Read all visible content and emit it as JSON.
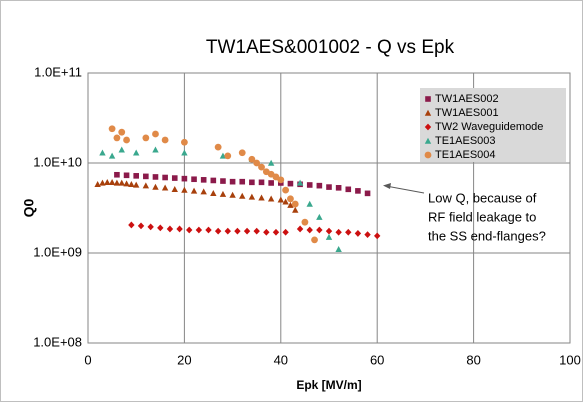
{
  "chart_data": {
    "type": "scatter",
    "title": "TW1AES&001002 - Q vs Epk",
    "x_label": "Epk [MV/m]",
    "y_label": "Q0",
    "xlim": [
      0,
      100
    ],
    "xticks": [
      0,
      20,
      40,
      60,
      80,
      100
    ],
    "ylim": [
      100000000,
      100000000000
    ],
    "yscale": "log",
    "yticks": [
      {
        "value": 100000000,
        "label": "1.0E+08"
      },
      {
        "value": 1000000000,
        "label": "1.0E+09"
      },
      {
        "value": 10000000000,
        "label": "1.0E+10"
      },
      {
        "value": 100000000000,
        "label": "1.0E+11"
      }
    ],
    "grid": true,
    "legend": "upper right",
    "annotation": [
      "Low Q, because of",
      "RF field leakage to",
      "the SS end-flanges?"
    ],
    "series": [
      {
        "name": "TW1AES002",
        "color": "#8b1a4a",
        "marker": "square",
        "x": [
          6,
          8,
          10,
          12,
          14,
          16,
          18,
          20,
          22,
          24,
          26,
          28,
          30,
          32,
          34,
          36,
          38,
          40,
          42,
          44,
          46,
          48,
          50,
          52,
          54,
          56,
          58
        ],
        "values": [
          7400000000,
          7300000000,
          7200000000,
          7100000000,
          7000000000,
          6900000000,
          6800000000,
          6700000000,
          6600000000,
          6500000000,
          6400000000,
          6300000000,
          6200000000,
          6200000000,
          6100000000,
          6100000000,
          6000000000,
          6000000000,
          5900000000,
          5800000000,
          5700000000,
          5600000000,
          5400000000,
          5300000000,
          5100000000,
          4900000000,
          4600000000
        ]
      },
      {
        "name": "TW1AES001",
        "color": "#a8400c",
        "marker": "triangle",
        "x": [
          2,
          3,
          4,
          5,
          6,
          7,
          8,
          9,
          10,
          12,
          14,
          16,
          18,
          20,
          22,
          24,
          26,
          28,
          30,
          32,
          34,
          36,
          38,
          40,
          41,
          42,
          43
        ],
        "values": [
          5800000000,
          6000000000,
          6100000000,
          6100000000,
          6000000000,
          6000000000,
          5900000000,
          5800000000,
          5700000000,
          5600000000,
          5400000000,
          5300000000,
          5100000000,
          5000000000,
          4900000000,
          4800000000,
          4600000000,
          4500000000,
          4400000000,
          4300000000,
          4200000000,
          4100000000,
          4000000000,
          3900000000,
          3700000000,
          3400000000,
          3000000000
        ]
      },
      {
        "name": "TW2 Waveguidemode",
        "color": "#cc1010",
        "marker": "diamond",
        "x": [
          9,
          11,
          13,
          15,
          17,
          19,
          21,
          23,
          25,
          27,
          29,
          31,
          33,
          35,
          37,
          39,
          41,
          44,
          46,
          48,
          50,
          52,
          54,
          56,
          58,
          60
        ],
        "values": [
          2050000000,
          2000000000,
          1950000000,
          1900000000,
          1850000000,
          1850000000,
          1800000000,
          1800000000,
          1800000000,
          1750000000,
          1750000000,
          1750000000,
          1750000000,
          1750000000,
          1700000000,
          1700000000,
          1700000000,
          1850000000,
          1800000000,
          1800000000,
          1750000000,
          1700000000,
          1700000000,
          1650000000,
          1600000000,
          1550000000
        ]
      },
      {
        "name": "TE1AES003",
        "color": "#3aa88e",
        "marker": "triangle",
        "x": [
          3,
          5,
          7,
          10,
          14,
          20,
          28,
          34,
          38,
          44,
          46,
          48,
          50,
          52
        ],
        "values": [
          13000000000,
          12000000000,
          14000000000,
          13000000000,
          14000000000,
          13000000000,
          12000000000,
          11000000000,
          10000000000,
          6000000000,
          3500000000,
          2500000000,
          1500000000,
          1100000000
        ]
      },
      {
        "name": "TE1AES004",
        "color": "#e08a48",
        "marker": "circle",
        "x": [
          5,
          6,
          7,
          8,
          12,
          14,
          16,
          20,
          27,
          29,
          32,
          34,
          35,
          36,
          37,
          38,
          39,
          40,
          41,
          42,
          43,
          45,
          47
        ],
        "values": [
          24000000000,
          19000000000,
          22000000000,
          18000000000,
          19000000000,
          21000000000,
          18000000000,
          17000000000,
          15000000000,
          12000000000,
          13000000000,
          11000000000,
          10000000000,
          9000000000,
          8000000000,
          7500000000,
          7000000000,
          6500000000,
          5000000000,
          4000000000,
          3500000000,
          2200000000,
          1400000000
        ]
      }
    ]
  }
}
